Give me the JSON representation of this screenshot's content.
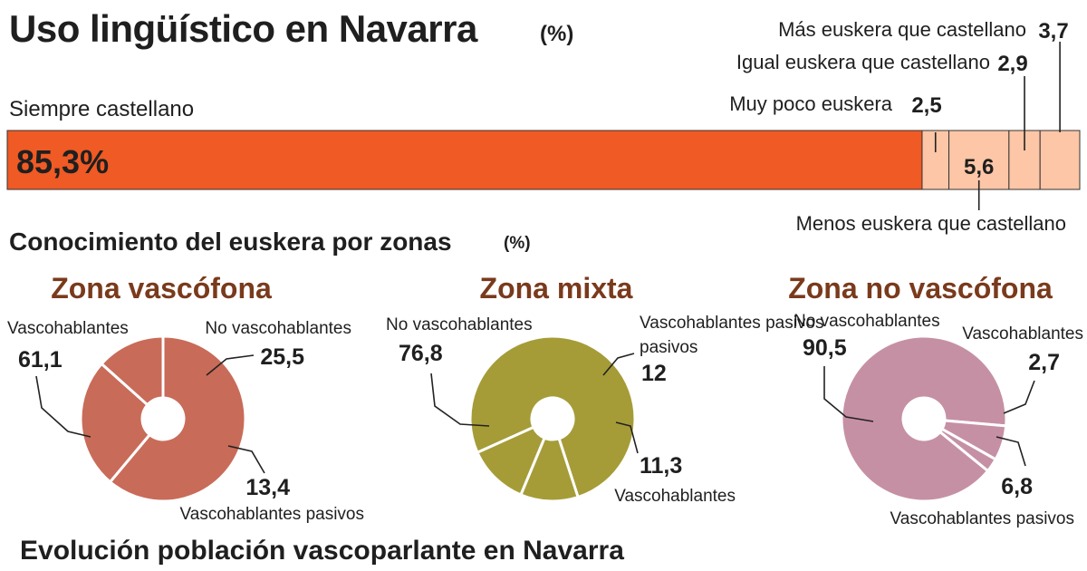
{
  "header": {
    "title": "Uso lingüístico en Navarra",
    "unit": "(%)"
  },
  "section2": {
    "title": "Conocimiento del euskera por zonas",
    "unit": "(%)"
  },
  "section3": {
    "title": "Evolución población vascoparlante en Navarra"
  },
  "colors": {
    "main_bar": "#f05a24",
    "minor_bar": "#fdc6a6",
    "vascofona": "#c96b59",
    "mixta": "#a59c38",
    "no_vascofona": "#c690a4",
    "divider": "#ffffff",
    "text": "#1f1f1f"
  },
  "chart_data": [
    {
      "type": "bar",
      "orientation": "horizontal-stacked",
      "categories": [
        "Siempre castellano",
        "Muy poco euskera",
        "Menos euskera que castellano",
        "Igual euskera que castellano",
        "Más euskera que castellano"
      ],
      "values": [
        85.3,
        2.5,
        5.6,
        2.9,
        3.7
      ],
      "value_labels": [
        "85,3%",
        "2,5",
        "5,6",
        "2,9",
        "3,7"
      ]
    },
    {
      "type": "pie",
      "title": "Zona vascófona",
      "slices": [
        {
          "label": "Vascohablantes",
          "value": 61.1,
          "display": "61,1"
        },
        {
          "label": "No vascohablantes",
          "value": 25.5,
          "display": "25,5"
        },
        {
          "label": "Vascohablantes pasivos",
          "value": 13.4,
          "display": "13,4"
        }
      ]
    },
    {
      "type": "pie",
      "title": "Zona mixta",
      "slices": [
        {
          "label": "No vascohablantes",
          "value": 76.8,
          "display": "76,8"
        },
        {
          "label": "Vascohablantes pasivos",
          "value": 12,
          "display": "12"
        },
        {
          "label": "Vascohablantes",
          "value": 11.3,
          "display": "11,3"
        }
      ]
    },
    {
      "type": "pie",
      "title": "Zona no vascófona",
      "slices": [
        {
          "label": "No vascohablantes",
          "value": 90.5,
          "display": "90,5"
        },
        {
          "label": "Vascohablantes",
          "value": 2.7,
          "display": "2,7"
        },
        {
          "label": "Vascohablantes pasivos",
          "value": 6.8,
          "display": "6,8"
        }
      ]
    }
  ]
}
